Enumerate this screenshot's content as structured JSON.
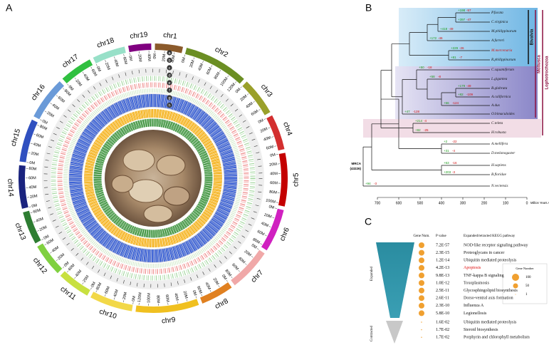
{
  "panels": {
    "a": {
      "label": "A",
      "tracks": [
        "a",
        "b",
        "c",
        "d",
        "e",
        "f",
        "g",
        "h"
      ],
      "chromosomes": [
        {
          "name": "chr1",
          "length": 55,
          "color": "#8b5a2b",
          "ticks": [
            {
              "value": 0,
              "label": "0M"
            },
            {
              "value": 20,
              "label": "20M"
            },
            {
              "value": 40,
              "label": "40M"
            }
          ]
        },
        {
          "name": "chr2",
          "length": 128,
          "color": "#6b8e23",
          "ticks": [
            {
              "value": 0,
              "label": "0M"
            },
            {
              "value": 20,
              "label": "20M"
            },
            {
              "value": 40,
              "label": "40M"
            },
            {
              "value": 60,
              "label": "60M"
            },
            {
              "value": 80,
              "label": "80M"
            },
            {
              "value": 100,
              "label": "100M"
            },
            {
              "value": 120,
              "label": "120M"
            }
          ]
        },
        {
          "name": "chr3",
          "length": 75,
          "color": "#9aa02a",
          "ticks": [
            {
              "value": 0,
              "label": "0M"
            },
            {
              "value": 20,
              "label": "20M"
            },
            {
              "value": 40,
              "label": "40M"
            },
            {
              "value": 60,
              "label": "60M"
            }
          ]
        },
        {
          "name": "chr4",
          "length": 70,
          "color": "#d32f2f",
          "ticks": [
            {
              "value": 0,
              "label": "0M"
            },
            {
              "value": 20,
              "label": "20M"
            },
            {
              "value": 40,
              "label": "40M"
            },
            {
              "value": 60,
              "label": "60M"
            }
          ]
        },
        {
          "name": "chr5",
          "length": 105,
          "color": "#c40000",
          "ticks": [
            {
              "value": 0,
              "label": "0M"
            },
            {
              "value": 20,
              "label": "20M"
            },
            {
              "value": 40,
              "label": "40M"
            },
            {
              "value": 60,
              "label": "60M"
            },
            {
              "value": 80,
              "label": "80M"
            },
            {
              "value": 100,
              "label": "100M"
            }
          ]
        },
        {
          "name": "chr6",
          "length": 85,
          "color": "#d020c0",
          "ticks": [
            {
              "value": 0,
              "label": "0M"
            },
            {
              "value": 20,
              "label": "20M"
            },
            {
              "value": 40,
              "label": "40M"
            },
            {
              "value": 60,
              "label": "60M"
            },
            {
              "value": 80,
              "label": "80M"
            }
          ]
        },
        {
          "name": "chr7",
          "length": 85,
          "color": "#f0a8a8",
          "ticks": [
            {
              "value": 0,
              "label": "0M"
            },
            {
              "value": 20,
              "label": "20M"
            },
            {
              "value": 40,
              "label": "40M"
            },
            {
              "value": 60,
              "label": "60M"
            },
            {
              "value": 80,
              "label": "80M"
            }
          ]
        },
        {
          "name": "chr8",
          "length": 65,
          "color": "#e08020",
          "ticks": [
            {
              "value": 0,
              "label": "0M"
            },
            {
              "value": 20,
              "label": "20M"
            },
            {
              "value": 40,
              "label": "40M"
            },
            {
              "value": 60,
              "label": "60M"
            }
          ]
        },
        {
          "name": "chr9",
          "length": 125,
          "color": "#f0c020",
          "ticks": [
            {
              "value": 0,
              "label": "0M"
            },
            {
              "value": 20,
              "label": "20M"
            },
            {
              "value": 40,
              "label": "40M"
            },
            {
              "value": 60,
              "label": "60M"
            },
            {
              "value": 80,
              "label": "80M"
            },
            {
              "value": 100,
              "label": "100M"
            },
            {
              "value": 120,
              "label": "120M"
            }
          ]
        },
        {
          "name": "chr10",
          "length": 85,
          "color": "#f2d848",
          "ticks": [
            {
              "value": 0,
              "label": "0M"
            },
            {
              "value": 20,
              "label": "20M"
            },
            {
              "value": 40,
              "label": "40M"
            },
            {
              "value": 60,
              "label": "60M"
            },
            {
              "value": 80,
              "label": "80M"
            }
          ]
        },
        {
          "name": "chr11",
          "length": 65,
          "color": "#c8e040",
          "ticks": [
            {
              "value": 0,
              "label": "0M"
            },
            {
              "value": 20,
              "label": "20M"
            },
            {
              "value": 40,
              "label": "40M"
            },
            {
              "value": 60,
              "label": "60M"
            }
          ]
        },
        {
          "name": "chr12",
          "length": 65,
          "color": "#80d040",
          "ticks": [
            {
              "value": 0,
              "label": "0M"
            },
            {
              "value": 20,
              "label": "20M"
            },
            {
              "value": 40,
              "label": "40M"
            },
            {
              "value": 60,
              "label": "60M"
            }
          ]
        },
        {
          "name": "chr13",
          "length": 65,
          "color": "#2e7d32",
          "ticks": [
            {
              "value": 0,
              "label": "0M"
            },
            {
              "value": 20,
              "label": "20M"
            },
            {
              "value": 40,
              "label": "40M"
            },
            {
              "value": 60,
              "label": "60M"
            }
          ]
        },
        {
          "name": "chr14",
          "length": 85,
          "color": "#1a237e",
          "ticks": [
            {
              "value": 0,
              "label": "0M"
            },
            {
              "value": 20,
              "label": "20M"
            },
            {
              "value": 40,
              "label": "40M"
            },
            {
              "value": 60,
              "label": "60M"
            },
            {
              "value": 80,
              "label": "80M"
            }
          ]
        },
        {
          "name": "chr15",
          "length": 85,
          "color": "#3050c0",
          "ticks": [
            {
              "value": 0,
              "label": "0M"
            },
            {
              "value": 20,
              "label": "20M"
            },
            {
              "value": 40,
              "label": "40M"
            },
            {
              "value": 60,
              "label": "60M"
            },
            {
              "value": 80,
              "label": "80M"
            }
          ]
        },
        {
          "name": "chr16",
          "length": 85,
          "color": "#6a9ad8",
          "ticks": [
            {
              "value": 0,
              "label": "0M"
            },
            {
              "value": 20,
              "label": "20M"
            },
            {
              "value": 40,
              "label": "40M"
            },
            {
              "value": 60,
              "label": "60M"
            },
            {
              "value": 80,
              "label": "80M"
            }
          ]
        },
        {
          "name": "chr17",
          "length": 65,
          "color": "#30c040",
          "ticks": [
            {
              "value": 0,
              "label": "0M"
            },
            {
              "value": 20,
              "label": "20M"
            },
            {
              "value": 40,
              "label": "40M"
            },
            {
              "value": 60,
              "label": "60M"
            }
          ]
        },
        {
          "name": "chr18",
          "length": 65,
          "color": "#98e0c8",
          "ticks": [
            {
              "value": 0,
              "label": "0M"
            },
            {
              "value": 20,
              "label": "20M"
            },
            {
              "value": 40,
              "label": "40M"
            },
            {
              "value": 60,
              "label": "60M"
            }
          ]
        },
        {
          "name": "chr19",
          "length": 45,
          "color": "#800080",
          "ticks": [
            {
              "value": 0,
              "label": "0M"
            },
            {
              "value": 20,
              "label": "20M"
            },
            {
              "value": 40,
              "label": "40M"
            }
          ]
        }
      ]
    },
    "b": {
      "label": "B",
      "species": [
        {
          "name": "P.fucata",
          "gain": "+198",
          "loss": "-57"
        },
        {
          "name": "C.virginica",
          "gain": "+397",
          "loss": "-47"
        },
        {
          "name": "M.philippinarum",
          "gain": "+418",
          "loss": "-49"
        },
        {
          "name": "A.farreri",
          "gain": "+172",
          "loss": "-46"
        },
        {
          "name": "M.mercenaria",
          "gain": "+229",
          "loss": "-26",
          "highlight": true
        },
        {
          "name": "R.philippinarum",
          "gain": "+81",
          "loss": "-7"
        },
        {
          "name": "C.squamiferum",
          "gain": "+50",
          "loss": "-18"
        },
        {
          "name": "L.gigantea",
          "gain": "+58",
          "loss": "-8"
        },
        {
          "name": "B.glabrata",
          "gain": "+179",
          "loss": "-49"
        },
        {
          "name": "A.californica",
          "gain": "+82",
          "loss": "-109"
        },
        {
          "name": "A.dux",
          "gain": "+66",
          "loss": "-124"
        },
        {
          "name": "O.bimaculoides",
          "gain": "+47",
          "loss": "-128"
        },
        {
          "name": "C.teleta",
          "gain": "+214",
          "loss": "-4"
        },
        {
          "name": "H.robusta",
          "gain": "+82",
          "loss": "-25"
        },
        {
          "name": "A.mellifera",
          "gain": "+2",
          "loss": "-22"
        },
        {
          "name": "D.melanogaster",
          "gain": "+31",
          "loss": "-4"
        },
        {
          "name": "H.sapiens",
          "gain": "+63",
          "loss": "-16"
        },
        {
          "name": "B.floridae",
          "gain": "+203",
          "loss": "-3"
        },
        {
          "name": "N.vectensis",
          "gain": "+94",
          "loss": "-3"
        }
      ],
      "groups": [
        "Bivalvia",
        "Mollusca",
        "Lophotrochozoa"
      ],
      "root": {
        "label": "MRCA",
        "count": "(43226)"
      },
      "axis": {
        "ticks": [
          700,
          600,
          500,
          400,
          300,
          200,
          100,
          0
        ],
        "xlim": [
          750,
          0
        ],
        "label": "Million Years Ago"
      }
    },
    "c": {
      "label": "C",
      "headers": [
        "Gene Num.",
        "P value",
        "Expanded/retracted KEGG pathway"
      ],
      "expanded": {
        "label": "Expanded",
        "highlight_row": 3,
        "rows": [
          [
            "7.2E-57",
            "NOD-like receptor signaling pathway"
          ],
          [
            "2.3E-15",
            "Proteoglycans in cancer"
          ],
          [
            "1.2E-14",
            "Ubiquitin mediated proteolysis"
          ],
          [
            "4.2E-13",
            "Apoptosis"
          ],
          [
            "9.8E-13",
            "TNF-kappa B signaling"
          ],
          [
            "1.0E-12",
            "Toxoplasmosis"
          ],
          [
            "2.5E-11",
            "Glycosphingolipid biosynthesis"
          ],
          [
            "2.6E-11",
            "Dorso-ventral axis formation"
          ],
          [
            "2.3E-10",
            "Influenza A"
          ],
          [
            "5.8E-10",
            "Legionellosis"
          ]
        ]
      },
      "contracted": {
        "label": "Contracted",
        "rows": [
          [
            "1.6E-02",
            "Ubiquitin mediated proteolysis"
          ],
          [
            "1.7E-02",
            "Steroid biosynthesis"
          ],
          [
            "1.7E-02",
            "Porphyrin and chlorophyll metabolism"
          ]
        ]
      },
      "legend": {
        "title": "Gene Number",
        "items": [
          100,
          50,
          1
        ]
      }
    }
  }
}
